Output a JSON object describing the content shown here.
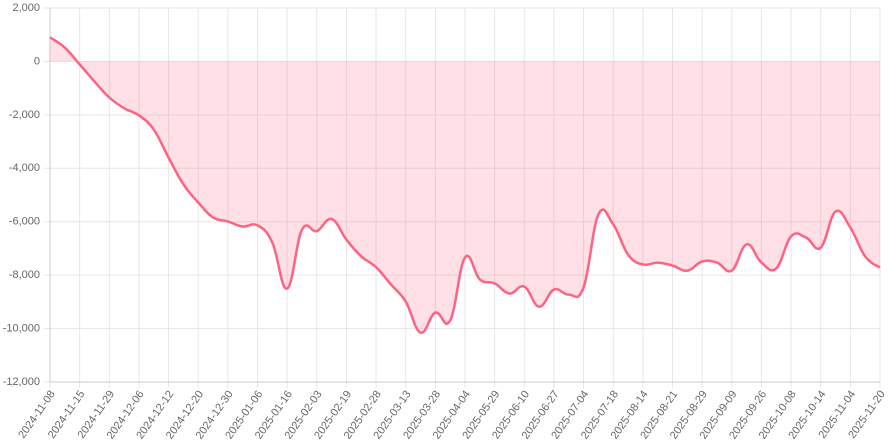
{
  "chart_data": {
    "type": "line",
    "fill": "origin",
    "color": "#ff6384",
    "fill_color": "rgba(255,99,132,0.2)",
    "grid": true,
    "categories": [
      "2024-11-08",
      null,
      "2024-11-15",
      null,
      "2024-11-29",
      null,
      "2024-12-06",
      null,
      "2024-12-12",
      null,
      "2024-12-20",
      null,
      "2024-12-30",
      null,
      "2025-01-06",
      null,
      "2025-01-16",
      null,
      "2025-02-03",
      null,
      "2025-02-19",
      null,
      "2025-02-28",
      null,
      "2025-03-13",
      null,
      "2025-03-28",
      null,
      "2025-04-04",
      null,
      "2025-05-29",
      null,
      "2025-06-10",
      null,
      "2025-06-27",
      null,
      "2025-07-04",
      null,
      "2025-07-18",
      null,
      "2025-08-14",
      null,
      "2025-08-21",
      null,
      "2025-08-29",
      null,
      "2025-09-09",
      null,
      "2025-09-26",
      null,
      "2025-10-08",
      null,
      "2025-10-14",
      null,
      "2025-11-04",
      null,
      "2025-11-20"
    ],
    "values": [
      900,
      520,
      -110,
      -750,
      -1350,
      -1750,
      -2020,
      -2550,
      -3600,
      -4600,
      -5280,
      -5840,
      -5990,
      -6180,
      -6140,
      -6780,
      -8500,
      -6300,
      -6350,
      -5900,
      -6670,
      -7300,
      -7700,
      -8350,
      -8990,
      -10150,
      -9400,
      -9700,
      -7340,
      -8160,
      -8310,
      -8690,
      -8430,
      -9180,
      -8540,
      -8730,
      -8460,
      -5730,
      -6100,
      -7230,
      -7600,
      -7530,
      -7640,
      -7830,
      -7490,
      -7530,
      -7830,
      -6850,
      -7530,
      -7750,
      -6550,
      -6590,
      -6970,
      -5620,
      -6220,
      -7300,
      -7720
    ],
    "ylim": [
      -12000,
      2000
    ],
    "yticks": [
      {
        "value": -12000,
        "label": "-12,000"
      },
      {
        "value": -10000,
        "label": "-10,000"
      },
      {
        "value": -8000,
        "label": "-8,000"
      },
      {
        "value": -6000,
        "label": "-6,000"
      },
      {
        "value": -4000,
        "label": "-4,000"
      },
      {
        "value": -2000,
        "label": "-2,000"
      },
      0,
      {
        "value": 2000,
        "label": "2,000"
      }
    ]
  }
}
